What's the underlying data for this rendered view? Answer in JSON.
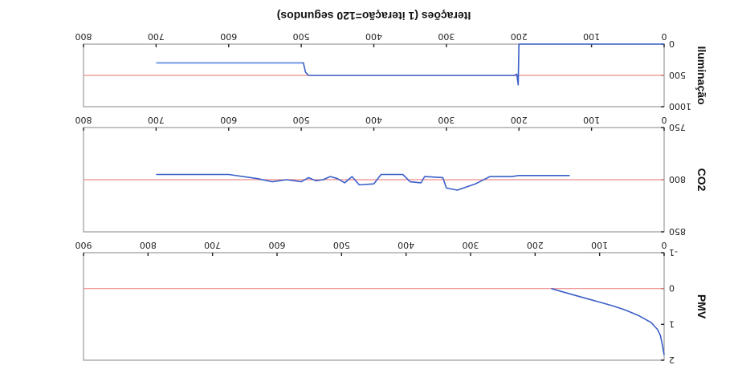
{
  "chart_data": [
    {
      "type": "line",
      "ylabel": "PMV",
      "xlabel": "",
      "xlim": [
        0,
        900
      ],
      "x_ticks": [
        "0",
        "100",
        "200",
        "300",
        "400",
        "500",
        "600",
        "700",
        "800",
        "900"
      ],
      "ylim": [
        -1,
        2
      ],
      "y_ticks": [
        "-1",
        "0",
        "1",
        "2"
      ],
      "reference": 0,
      "colors": {
        "series": "#3a5fc8",
        "reference": "#f08a8a"
      },
      "series": [
        {
          "x": [
            0,
            3,
            6,
            10,
            20,
            40,
            60,
            80,
            100,
            120,
            140,
            160,
            175
          ],
          "y": [
            1.85,
            1.55,
            1.3,
            1.15,
            0.95,
            0.75,
            0.6,
            0.48,
            0.38,
            0.28,
            0.18,
            0.08,
            0.0
          ]
        }
      ]
    },
    {
      "type": "line",
      "ylabel": "CO2",
      "xlabel": "",
      "xlim": [
        0,
        800
      ],
      "x_ticks": [
        "0",
        "100",
        "200",
        "300",
        "400",
        "500",
        "600",
        "700",
        "800"
      ],
      "ylim": [
        750,
        850
      ],
      "y_ticks": [
        "750",
        "800",
        "850"
      ],
      "reference": 800,
      "colors": {
        "series": "#3a5fc8",
        "reference": "#f08a8a"
      },
      "series": [
        {
          "x": [
            130,
            200,
            210,
            240,
            260,
            285,
            300,
            305,
            330,
            335,
            350,
            360,
            390,
            400,
            420,
            430,
            440,
            450,
            460,
            470,
            480,
            490,
            500,
            520,
            540,
            560,
            600,
            700
          ],
          "y": [
            796,
            796,
            797,
            797,
            804,
            810,
            808,
            798,
            797,
            803,
            802,
            795,
            795,
            804,
            805,
            797,
            803,
            799,
            797,
            800,
            801,
            798,
            802,
            800,
            802,
            799,
            795,
            795
          ]
        }
      ]
    },
    {
      "type": "line",
      "ylabel": "Iluminação",
      "xlabel": "Iterações (1 iteração=120 segundos)",
      "xlim": [
        0,
        800
      ],
      "x_ticks": [
        "0",
        "100",
        "200",
        "300",
        "400",
        "500",
        "600",
        "700",
        "800"
      ],
      "ylim": [
        0,
        1000
      ],
      "y_ticks": [
        "0",
        "500",
        "1000"
      ],
      "reference": 500,
      "colors": {
        "series": "#3a5fc8",
        "secondary": "#7fa4ea",
        "reference": "#f08a8a"
      },
      "series": [
        {
          "x": [
            0,
            200,
            201,
            203,
            206,
            210,
            300,
            400,
            490,
            494,
            497,
            500
          ],
          "y": [
            0,
            0,
            650,
            480,
            500,
            500,
            500,
            500,
            500,
            450,
            300,
            300
          ]
        },
        {
          "x": [
            500,
            700
          ],
          "y": [
            300,
            300
          ]
        }
      ]
    }
  ]
}
